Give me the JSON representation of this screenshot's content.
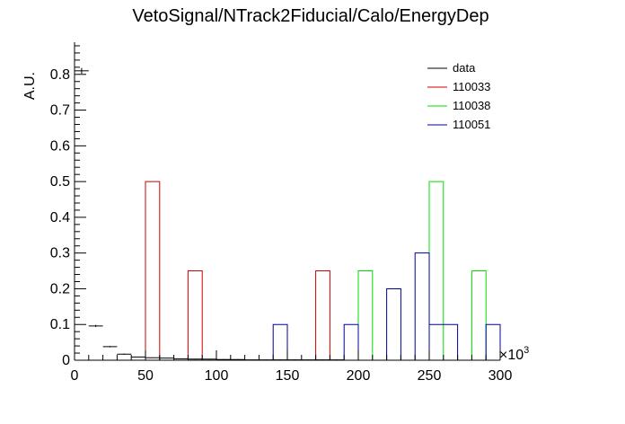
{
  "chart_data": {
    "type": "bar",
    "title": "VetoSignal/NTrack2Fiducial/Calo/EnergyDep",
    "ylabel": "A.U.",
    "xlabel": "",
    "x_exponent_label": "×10",
    "x_exponent_power": "3",
    "xlim": [
      0,
      300
    ],
    "ylim": [
      0,
      0.89
    ],
    "x_ticks": [
      0,
      50,
      100,
      150,
      200,
      250,
      300
    ],
    "y_ticks": [
      0,
      0.1,
      0.2,
      0.3,
      0.4,
      0.5,
      0.6,
      0.7,
      0.8
    ],
    "x_tick_labels": [
      "0",
      "50",
      "100",
      "150",
      "200",
      "250",
      "300"
    ],
    "y_tick_labels": [
      "0",
      "0.1",
      "0.2",
      "0.3",
      "0.4",
      "0.5",
      "0.6",
      "0.7",
      "0.8"
    ],
    "legend_position": "top-right",
    "series": [
      {
        "name": "data",
        "style": "points",
        "color": "#000000",
        "x": [
          5,
          15,
          25,
          35,
          45,
          55,
          65,
          75,
          85,
          95,
          105,
          115,
          125,
          135,
          145,
          155,
          165,
          175,
          185
        ],
        "values": [
          0.81,
          0.096,
          0.038,
          0.017,
          0.009,
          0.007,
          0.006,
          0.004,
          0.003,
          0.003,
          0.002,
          0.002,
          0.001,
          0.001,
          0.001,
          0.001,
          0.001,
          0.001,
          0.001
        ],
        "errors": [
          0.008,
          0.003,
          0.002,
          0.0015,
          0.001,
          0.001,
          0.001,
          0.001,
          0.001,
          0.001,
          0.001,
          0.001,
          0.001,
          0.001,
          0.001,
          0.001,
          0.001,
          0.001,
          0.001
        ]
      },
      {
        "name": "110033",
        "style": "hist",
        "color": "#cc0000",
        "bins": [
          [
            50,
            60,
            0.5
          ],
          [
            80,
            90,
            0.25
          ],
          [
            170,
            180,
            0.25
          ]
        ]
      },
      {
        "name": "110038",
        "style": "hist",
        "color": "#00dd00",
        "bins": [
          [
            200,
            210,
            0.25
          ],
          [
            250,
            260,
            0.5
          ],
          [
            280,
            290,
            0.25
          ]
        ]
      },
      {
        "name": "110051",
        "style": "hist",
        "color": "#000099",
        "bins": [
          [
            140,
            150,
            0.1
          ],
          [
            190,
            200,
            0.1
          ],
          [
            220,
            230,
            0.2
          ],
          [
            240,
            250,
            0.3
          ],
          [
            250,
            270,
            0.1
          ],
          [
            290,
            300,
            0.1
          ]
        ]
      }
    ]
  }
}
